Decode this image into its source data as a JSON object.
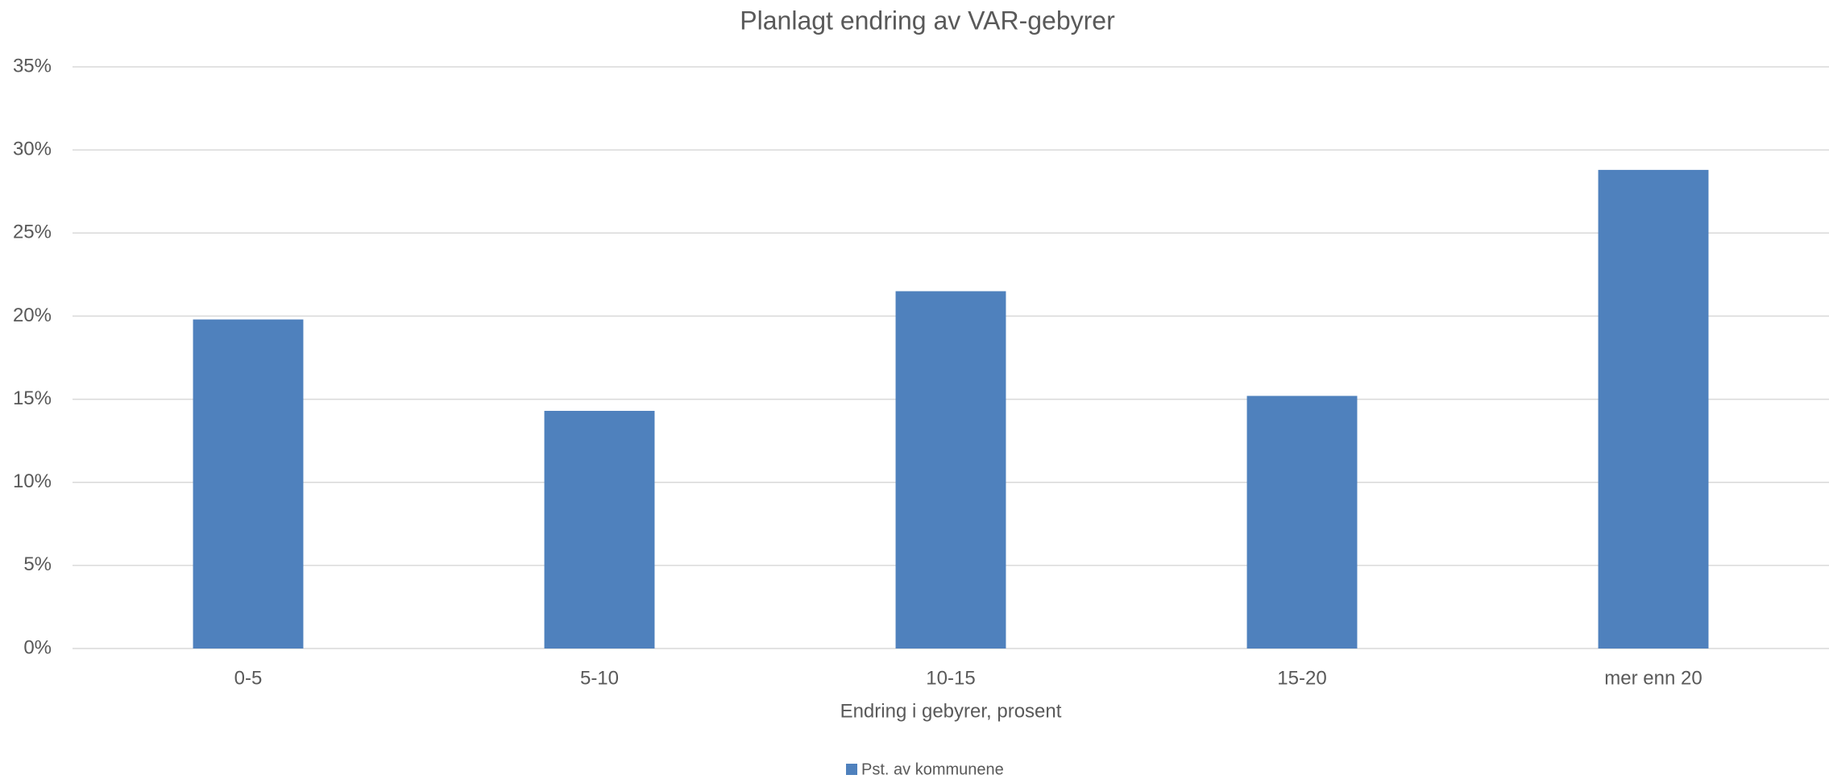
{
  "chart_data": {
    "type": "bar",
    "title": "Planlagt endring av VAR-gebyrer",
    "x_label": "Endring i gebyrer, prosent",
    "categories": [
      "0-5",
      "5-10",
      "10-15",
      "15-20",
      "mer enn 20"
    ],
    "series": [
      {
        "name": "Pst. av kommunene",
        "color": "#4f81bd",
        "values": [
          19.8,
          14.3,
          21.5,
          15.2,
          28.8
        ]
      }
    ],
    "ylim": [
      0,
      35
    ],
    "yticks": [
      {
        "value": 0,
        "label": "0%"
      },
      {
        "value": 5,
        "label": "5%"
      },
      {
        "value": 10,
        "label": "10%"
      },
      {
        "value": 15,
        "label": "15%"
      },
      {
        "value": 20,
        "label": "20%"
      },
      {
        "value": 25,
        "label": "25%"
      },
      {
        "value": 30,
        "label": "30%"
      },
      {
        "value": 35,
        "label": "35%"
      }
    ],
    "grid": true,
    "legend": "bottom"
  }
}
